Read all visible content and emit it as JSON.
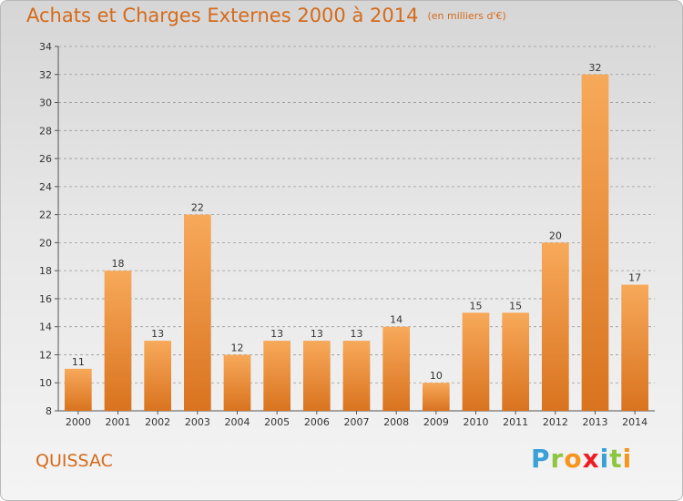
{
  "header": {
    "title": "Achats et Charges Externes 2000 à 2014",
    "subtitle": "(en milliers d'€)"
  },
  "footer": {
    "commune": "QUISSAC",
    "brand": "Proxiti",
    "brand_letters": [
      {
        "char": "P",
        "color": "#3aa0d8"
      },
      {
        "char": "r",
        "color": "#8dc63f"
      },
      {
        "char": "o",
        "color": "#f7941d"
      },
      {
        "char": "x",
        "color": "#ed1c24"
      },
      {
        "char": "i",
        "color": "#3aa0d8"
      },
      {
        "char": "t",
        "color": "#8dc63f"
      },
      {
        "char": "i",
        "color": "#f7941d"
      }
    ]
  },
  "colors": {
    "accent": "#d56a1a",
    "bar_top": "#f7a95a",
    "bar_bottom": "#d9731f"
  },
  "chart_data": {
    "type": "bar",
    "categories": [
      "2000",
      "2001",
      "2002",
      "2003",
      "2004",
      "2005",
      "2006",
      "2007",
      "2008",
      "2009",
      "2010",
      "2011",
      "2012",
      "2013",
      "2014"
    ],
    "values": [
      11,
      18,
      13,
      22,
      12,
      13,
      13,
      13,
      14,
      10,
      15,
      15,
      20,
      32,
      17
    ],
    "title": "Achats et Charges Externes 2000 à 2014",
    "subtitle": "(en milliers d'€)",
    "xlabel": "",
    "ylabel": "",
    "ylim": [
      8,
      34
    ],
    "yticks": [
      8,
      10,
      12,
      14,
      16,
      18,
      20,
      22,
      24,
      26,
      28,
      30,
      32,
      34
    ],
    "grid": true,
    "data_labels": true
  }
}
